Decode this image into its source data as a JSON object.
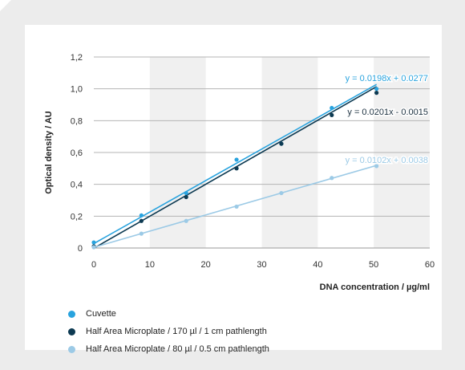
{
  "chart_data": {
    "type": "scatter",
    "xlabel": "DNA concentration / µg/ml",
    "ylabel": "Optical density / AU",
    "xlim": [
      0,
      60
    ],
    "ylim": [
      0,
      1.2
    ],
    "x_ticks": [
      "0",
      "10",
      "20",
      "30",
      "40",
      "50",
      "60"
    ],
    "y_ticks": [
      "0",
      "0,2",
      "0,4",
      "0,6",
      "0,8",
      "1,0",
      "1,2"
    ],
    "grid": true,
    "legend_position": "bottom-left",
    "series": [
      {
        "name": "Cuvette",
        "color": "#29a3de",
        "points": [
          [
            0,
            0.035
          ],
          [
            8.5,
            0.205
          ],
          [
            16.5,
            0.345
          ],
          [
            25.5,
            0.555
          ],
          [
            33.5,
            0.655
          ],
          [
            42.5,
            0.88
          ],
          [
            50.5,
            1.0
          ]
        ],
        "fit": {
          "slope": 0.0198,
          "intercept": 0.0277,
          "x_range": [
            0,
            50.5
          ]
        },
        "equation": "y = 0.0198x + 0.0277"
      },
      {
        "name": "Half Area Microplate / 170 µl / 1 cm pathlength",
        "color": "#0d3a52",
        "points": [
          [
            0,
            0.01
          ],
          [
            8.5,
            0.17
          ],
          [
            16.5,
            0.32
          ],
          [
            25.5,
            0.5
          ],
          [
            33.5,
            0.655
          ],
          [
            42.5,
            0.835
          ],
          [
            50.5,
            0.975
          ]
        ],
        "fit": {
          "slope": 0.0201,
          "intercept": -0.0015,
          "x_range": [
            0,
            50.5
          ]
        },
        "equation": "y = 0.0201x - 0.0015"
      },
      {
        "name": "Half Area Microplate / 80 µl / 0.5 cm pathlength",
        "color": "#9ccae6",
        "points": [
          [
            0,
            0.005
          ],
          [
            8.5,
            0.09
          ],
          [
            16.5,
            0.17
          ],
          [
            25.5,
            0.26
          ],
          [
            33.5,
            0.345
          ],
          [
            42.5,
            0.44
          ],
          [
            50.5,
            0.515
          ]
        ],
        "fit": {
          "slope": 0.0102,
          "intercept": 0.0038,
          "x_range": [
            0,
            50.5
          ]
        },
        "equation": "y = 0.0102x + 0.0038"
      }
    ]
  }
}
